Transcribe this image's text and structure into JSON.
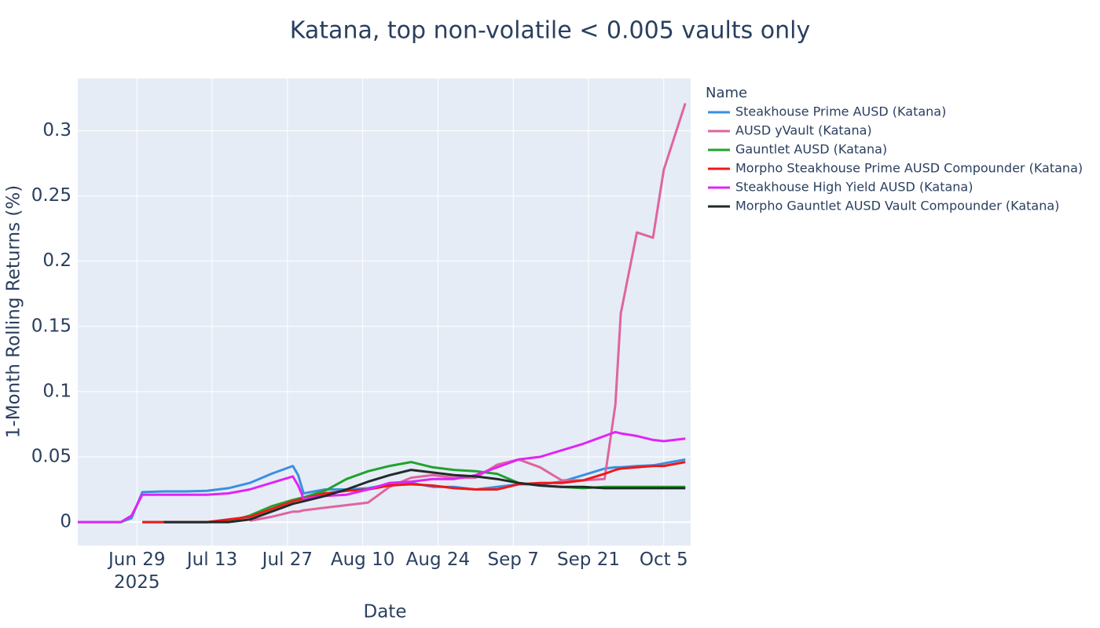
{
  "chart_data": {
    "type": "line",
    "title": "Katana, top non-volatile < 0.005 vaults only",
    "x_label": "Date",
    "y_label": "1-Month Rolling Returns (%)",
    "legend_title": "Name",
    "legend_position": "right",
    "grid": true,
    "xlim": [
      "2025-06-18",
      "2025-10-10"
    ],
    "ylim": [
      -0.018,
      0.34
    ],
    "xticks": [
      {
        "value": "2025-06-29",
        "label": "Jun 29\n2025"
      },
      {
        "value": "2025-07-13",
        "label": "Jul 13"
      },
      {
        "value": "2025-07-27",
        "label": "Jul 27"
      },
      {
        "value": "2025-08-10",
        "label": "Aug 10"
      },
      {
        "value": "2025-08-24",
        "label": "Aug 24"
      },
      {
        "value": "2025-09-07",
        "label": "Sep 7"
      },
      {
        "value": "2025-09-21",
        "label": "Sep 21"
      },
      {
        "value": "2025-10-05",
        "label": "Oct 5"
      }
    ],
    "yticks": [
      0,
      0.05,
      0.1,
      0.15,
      0.2,
      0.25,
      0.3
    ],
    "x": [
      "2025-06-18",
      "2025-06-22",
      "2025-06-26",
      "2025-06-28",
      "2025-06-30",
      "2025-07-04",
      "2025-07-08",
      "2025-07-12",
      "2025-07-16",
      "2025-07-20",
      "2025-07-24",
      "2025-07-28",
      "2025-07-29",
      "2025-07-30",
      "2025-08-03",
      "2025-08-07",
      "2025-08-11",
      "2025-08-15",
      "2025-08-19",
      "2025-08-23",
      "2025-08-27",
      "2025-08-31",
      "2025-09-04",
      "2025-09-08",
      "2025-09-12",
      "2025-09-16",
      "2025-09-20",
      "2025-09-24",
      "2025-09-26",
      "2025-09-27",
      "2025-09-30",
      "2025-10-03",
      "2025-10-05",
      "2025-10-09"
    ],
    "series": [
      {
        "name": "Steakhouse Prime AUSD (Katana)",
        "color": "#3a8fe0",
        "values": [
          0,
          0,
          0,
          0.003,
          0.023,
          0.0235,
          0.0235,
          0.024,
          0.026,
          0.03,
          0.037,
          0.043,
          0.036,
          0.022,
          0.025,
          0.025,
          0.026,
          0.029,
          0.03,
          0.027,
          0.027,
          0.025,
          0.027,
          0.029,
          0.029,
          0.031,
          0.036,
          0.041,
          0.042,
          0.042,
          0.043,
          0.0435,
          0.045,
          0.048
        ]
      },
      {
        "name": "AUSD yVault (Katana)",
        "color": "#df64a0",
        "values": [
          null,
          null,
          null,
          null,
          null,
          null,
          null,
          null,
          null,
          0.001,
          0.004,
          0.008,
          0.008,
          0.009,
          0.011,
          0.013,
          0.015,
          0.027,
          0.034,
          0.036,
          0.034,
          0.034,
          0.044,
          0.048,
          0.042,
          0.032,
          0.032,
          0.033,
          0.09,
          0.16,
          0.222,
          0.218,
          0.27,
          0.321
        ]
      },
      {
        "name": "Gauntlet AUSD (Katana)",
        "color": "#20a32c",
        "values": [
          null,
          null,
          null,
          null,
          0,
          0,
          0,
          0,
          0.0005,
          0.005,
          0.012,
          0.017,
          0.018,
          0.019,
          0.024,
          0.033,
          0.039,
          0.043,
          0.046,
          0.042,
          0.04,
          0.039,
          0.037,
          0.03,
          0.028,
          0.027,
          0.026,
          0.027,
          0.027,
          0.027,
          0.027,
          0.027,
          0.027,
          0.027
        ]
      },
      {
        "name": "Morpho Steakhouse Prime AUSD Compounder (Katana)",
        "color": "#f01818",
        "values": [
          null,
          null,
          null,
          null,
          0,
          0,
          0,
          0,
          0.002,
          0.004,
          0.01,
          0.016,
          0.017,
          0.018,
          0.022,
          0.024,
          0.025,
          0.028,
          0.029,
          0.028,
          0.026,
          0.025,
          0.025,
          0.029,
          0.03,
          0.03,
          0.032,
          0.037,
          0.04,
          0.041,
          0.042,
          0.043,
          0.043,
          0.046
        ]
      },
      {
        "name": "Steakhouse High Yield AUSD (Katana)",
        "color": "#e024f5",
        "values": [
          0,
          0,
          0,
          0.005,
          0.021,
          0.021,
          0.021,
          0.021,
          0.022,
          0.025,
          0.03,
          0.035,
          0.028,
          0.018,
          0.02,
          0.021,
          0.025,
          0.03,
          0.031,
          0.033,
          0.033,
          0.036,
          0.042,
          0.048,
          0.05,
          0.055,
          0.06,
          0.066,
          0.069,
          0.068,
          0.066,
          0.063,
          0.062,
          0.064
        ]
      },
      {
        "name": "Morpho Gauntlet AUSD Vault Compounder (Katana)",
        "color": "#222a2a",
        "values": [
          null,
          null,
          null,
          null,
          null,
          0,
          0,
          0,
          0,
          0.002,
          0.008,
          0.014,
          0.015,
          0.016,
          0.02,
          0.025,
          0.031,
          0.036,
          0.04,
          0.038,
          0.036,
          0.035,
          0.033,
          0.03,
          0.028,
          0.027,
          0.027,
          0.026,
          0.026,
          0.026,
          0.026,
          0.026,
          0.026,
          0.026
        ]
      }
    ]
  }
}
